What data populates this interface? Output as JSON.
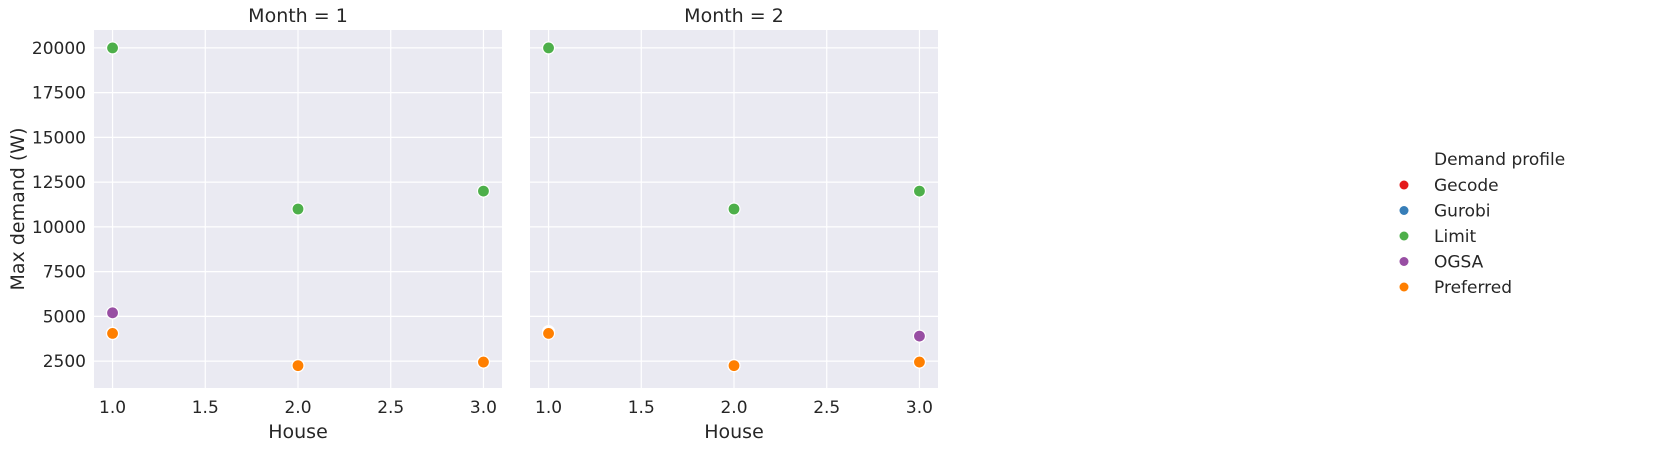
{
  "chart_data": {
    "type": "scatter",
    "xlabel": "House",
    "ylabel": "Max demand (W)",
    "xlim": [
      0.9,
      3.1
    ],
    "ylim": [
      1000,
      21000
    ],
    "x_ticks": [
      "1.0",
      "1.5",
      "2.0",
      "2.5",
      "3.0"
    ],
    "x_tick_values": [
      1.0,
      1.5,
      2.0,
      2.5,
      3.0
    ],
    "y_ticks": [
      "2500",
      "5000",
      "7500",
      "10000",
      "12500",
      "15000",
      "17500",
      "20000"
    ],
    "y_tick_values": [
      2500,
      5000,
      7500,
      10000,
      12500,
      15000,
      17500,
      20000
    ],
    "grid": true,
    "legend": {
      "title": "Demand profile",
      "placement": "right"
    },
    "series_styles": [
      {
        "name": "Gecode",
        "color": "#e41a1c"
      },
      {
        "name": "Gurobi",
        "color": "#377eb8"
      },
      {
        "name": "Limit",
        "color": "#4daf4a"
      },
      {
        "name": "OGSA",
        "color": "#984ea3"
      },
      {
        "name": "Preferred",
        "color": "#ff7f00"
      }
    ],
    "panels": [
      {
        "title": "Month = 1",
        "series": [
          {
            "name": "Gecode",
            "x": [
              1,
              2,
              3
            ],
            "y": [
              4050,
              2250,
              2450
            ]
          },
          {
            "name": "Gurobi",
            "x": [
              1,
              2,
              3
            ],
            "y": [
              4050,
              2250,
              2450
            ]
          },
          {
            "name": "Limit",
            "x": [
              1,
              2,
              3
            ],
            "y": [
              20000,
              11000,
              12000
            ]
          },
          {
            "name": "OGSA",
            "x": [
              1
            ],
            "y": [
              5200
            ]
          },
          {
            "name": "Preferred",
            "x": [
              1,
              2,
              3
            ],
            "y": [
              4050,
              2250,
              2450
            ]
          }
        ]
      },
      {
        "title": "Month = 2",
        "series": [
          {
            "name": "Gecode",
            "x": [
              1,
              2,
              3
            ],
            "y": [
              4150,
              2250,
              2450
            ]
          },
          {
            "name": "Gurobi",
            "x": [
              1,
              2,
              3
            ],
            "y": [
              4100,
              2250,
              2450
            ]
          },
          {
            "name": "Limit",
            "x": [
              1,
              2,
              3
            ],
            "y": [
              20000,
              11000,
              12000
            ]
          },
          {
            "name": "OGSA",
            "x": [
              3
            ],
            "y": [
              3900
            ]
          },
          {
            "name": "Preferred",
            "x": [
              1,
              2,
              3
            ],
            "y": [
              4050,
              2250,
              2450
            ]
          }
        ]
      }
    ]
  }
}
